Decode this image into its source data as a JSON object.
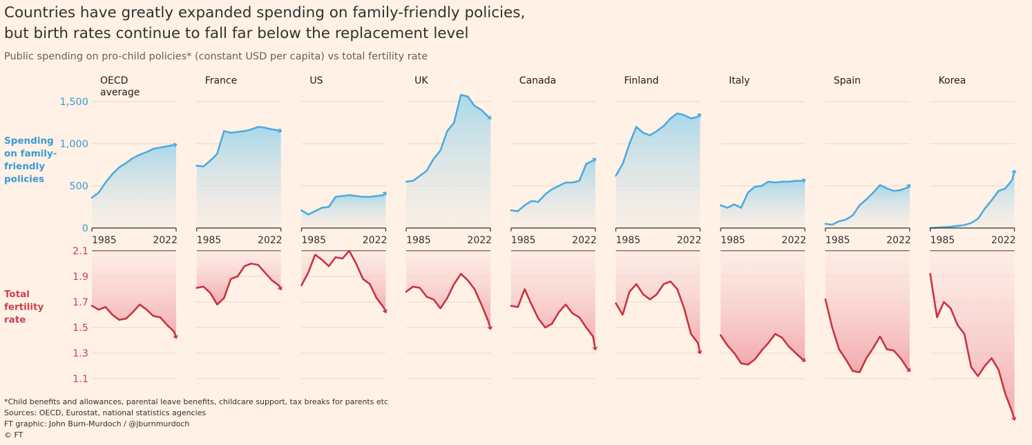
{
  "header": {
    "title_line1": "Countries have greatly expanded spending on family-friendly policies,",
    "title_line2": "but birth rates continue to fall far below the replacement level",
    "subtitle": "Public spending on pro-child policies* (constant USD per capita) vs total fertility rate"
  },
  "footer": {
    "note": "*Child benefits and allowances, parental leave benefits, childcare support, tax breaks for parents etc",
    "sources": "Sources: OECD, Eurostat, national statistics agencies",
    "credit": "FT graphic: John Burn-Murdoch / @jburnmurdoch",
    "copyright": "© FT"
  },
  "colors": {
    "background": "#FFF1E5",
    "spending": "#4DAAE0",
    "spending_label": "#3A9AD6",
    "fertility": "#C8323F",
    "fertility_label": "#D0404E",
    "grid": "#E3D6CB",
    "axis": "#33302E"
  },
  "chart_data": {
    "type": "line",
    "title": "Countries have greatly expanded spending on family-friendly policies, but birth rates continue to fall far below the replacement level",
    "x": [
      1985,
      1988,
      1991,
      1994,
      1997,
      2000,
      2003,
      2006,
      2009,
      2012,
      2015,
      2018,
      2021,
      2022
    ],
    "x_tick_labels": [
      "1985",
      "2022"
    ],
    "spending_axis": {
      "label_lines": [
        "Spending",
        "on family-",
        "friendly",
        "policies"
      ],
      "ylim": [
        0,
        1500
      ],
      "ticks": [
        0,
        500,
        1000,
        1500
      ],
      "tick_labels": [
        "0",
        "500",
        "1,000",
        "1,500"
      ]
    },
    "fertility_axis": {
      "label_lines": [
        "Total",
        "fertility",
        "rate"
      ],
      "ylim": [
        1.1,
        2.1
      ],
      "ticks": [
        2.1,
        1.9,
        1.7,
        1.5,
        1.3,
        1.1
      ],
      "tick_labels": [
        "2.1",
        "1.9",
        "1.7",
        "1.5",
        "1.3",
        "1.1"
      ]
    },
    "panels": [
      {
        "country_lines": [
          "OECD",
          "average"
        ],
        "spending": [
          360,
          420,
          540,
          640,
          720,
          770,
          830,
          870,
          900,
          940,
          955,
          970,
          985,
          990
        ],
        "fertility": [
          1.67,
          1.64,
          1.66,
          1.6,
          1.56,
          1.57,
          1.62,
          1.68,
          1.64,
          1.59,
          1.58,
          1.52,
          1.47,
          1.42
        ]
      },
      {
        "country_lines": [
          "France"
        ],
        "spending": [
          740,
          730,
          800,
          880,
          1150,
          1130,
          1140,
          1150,
          1170,
          1200,
          1190,
          1170,
          1160,
          1150
        ],
        "fertility": [
          1.81,
          1.82,
          1.77,
          1.68,
          1.73,
          1.88,
          1.9,
          1.98,
          2.0,
          1.99,
          1.93,
          1.87,
          1.83,
          1.8
        ]
      },
      {
        "country_lines": [
          "US"
        ],
        "spending": [
          210,
          160,
          200,
          240,
          250,
          370,
          380,
          390,
          380,
          370,
          370,
          380,
          390,
          420
        ],
        "fertility": [
          1.83,
          1.93,
          2.07,
          2.03,
          1.98,
          2.05,
          2.04,
          2.1,
          2.0,
          1.88,
          1.84,
          1.73,
          1.66,
          1.62
        ]
      },
      {
        "country_lines": [
          "UK"
        ],
        "spending": [
          550,
          560,
          620,
          680,
          820,
          920,
          1150,
          1250,
          1580,
          1560,
          1450,
          1400,
          1320,
          1300
        ],
        "fertility": [
          1.78,
          1.82,
          1.81,
          1.74,
          1.72,
          1.65,
          1.73,
          1.84,
          1.92,
          1.87,
          1.8,
          1.68,
          1.55,
          1.49
        ]
      },
      {
        "country_lines": [
          "Canada"
        ],
        "spending": [
          210,
          200,
          270,
          320,
          310,
          400,
          460,
          500,
          540,
          540,
          560,
          760,
          800,
          820
        ],
        "fertility": [
          1.67,
          1.66,
          1.8,
          1.68,
          1.57,
          1.5,
          1.53,
          1.62,
          1.68,
          1.61,
          1.58,
          1.5,
          1.43,
          1.33
        ]
      },
      {
        "country_lines": [
          "Finland"
        ],
        "spending": [
          620,
          760,
          1000,
          1200,
          1130,
          1100,
          1150,
          1210,
          1300,
          1360,
          1340,
          1300,
          1320,
          1350
        ],
        "fertility": [
          1.69,
          1.6,
          1.78,
          1.84,
          1.76,
          1.72,
          1.76,
          1.84,
          1.86,
          1.8,
          1.65,
          1.45,
          1.38,
          1.3
        ]
      },
      {
        "country_lines": [
          "Italy"
        ],
        "spending": [
          270,
          240,
          280,
          240,
          420,
          490,
          500,
          550,
          540,
          550,
          550,
          560,
          560,
          570
        ],
        "fertility": [
          1.44,
          1.36,
          1.3,
          1.22,
          1.21,
          1.25,
          1.32,
          1.38,
          1.45,
          1.42,
          1.35,
          1.3,
          1.25,
          1.24
        ]
      },
      {
        "country_lines": [
          "Spain"
        ],
        "spending": [
          50,
          40,
          80,
          100,
          150,
          270,
          340,
          420,
          510,
          470,
          440,
          450,
          480,
          510
        ],
        "fertility": [
          1.72,
          1.5,
          1.33,
          1.25,
          1.16,
          1.15,
          1.26,
          1.34,
          1.43,
          1.33,
          1.32,
          1.26,
          1.18,
          1.16
        ]
      },
      {
        "country_lines": [
          "Korea"
        ],
        "spending": [
          0,
          5,
          10,
          15,
          25,
          35,
          60,
          110,
          230,
          330,
          440,
          470,
          570,
          680
        ],
        "fertility": [
          1.92,
          1.58,
          1.7,
          1.65,
          1.52,
          1.45,
          1.19,
          1.12,
          1.2,
          1.26,
          1.17,
          0.98,
          0.84,
          0.78
        ]
      }
    ]
  }
}
